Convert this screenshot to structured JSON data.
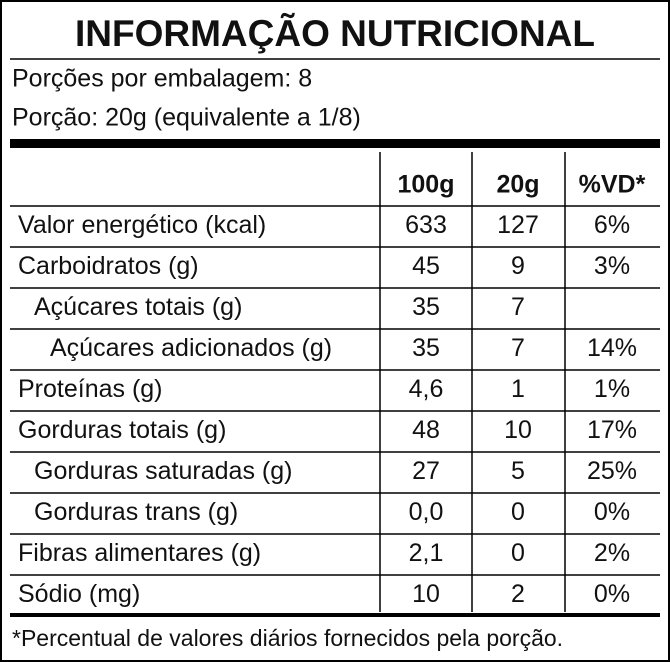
{
  "header": {
    "title": "INFORMAÇÃO NUTRICIONAL",
    "servings": "Porções por embalagem: 8",
    "portion": "Porção: 20g (equivalente a 1/8)"
  },
  "table": {
    "columns": [
      "100g",
      "20g",
      "%VD*"
    ],
    "rows": [
      [
        "Valor energético (kcal)",
        "633",
        "127",
        "6%"
      ],
      [
        "Carboidratos (g)",
        "45",
        "9",
        "3%"
      ],
      [
        "Açúcares totais (g)",
        "35",
        "7",
        null
      ],
      [
        "Açúcares adicionados (g)",
        "35",
        "7",
        "14%"
      ],
      [
        "Proteínas (g)",
        "4,6",
        "1",
        "1%"
      ],
      [
        "Gorduras totais (g)",
        "48",
        "10",
        "17%"
      ],
      [
        "Gorduras saturadas (g)",
        "27",
        "5",
        "25%"
      ],
      [
        "Gorduras trans (g)",
        "0,0",
        "0",
        "0%"
      ],
      [
        "Fibras alimentares (g)",
        "2,1",
        "0",
        "2%"
      ],
      [
        "Sódio (mg)",
        "10",
        "2",
        "0%"
      ]
    ]
  },
  "footnote": "*Percentual de valores diários fornecidos pela porção."
}
